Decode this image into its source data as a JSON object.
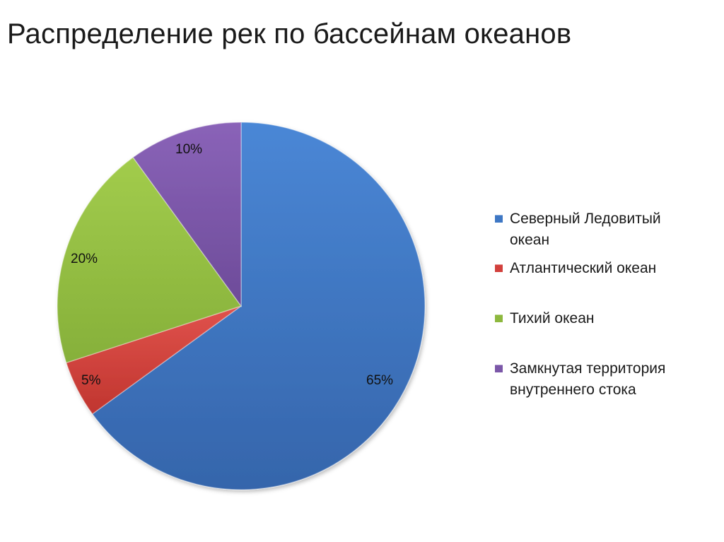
{
  "title": "Распределение рек по бассейнам океанов",
  "chart_data": {
    "type": "pie",
    "title": "Распределение рек по бассейнам океанов",
    "categories": [
      "Северный Ледовитый океан",
      "Атлантический океан",
      "Тихий океан",
      "Замкнутая территория внутреннего стока"
    ],
    "values": [
      65,
      5,
      20,
      10
    ],
    "labels": [
      "65%",
      "5%",
      "20%",
      "10%"
    ],
    "colors": [
      "#3e77c4",
      "#d2403c",
      "#8db83e",
      "#7b57a8"
    ],
    "legend_position": "right",
    "start_angle_deg": 0,
    "direction": "clockwise"
  },
  "legend": {
    "items": [
      {
        "label": "Северный Ледовитый океан",
        "color": "#3e77c4"
      },
      {
        "label": "Атлантический океан",
        "color": "#d2403c"
      },
      {
        "label": "Тихий океан",
        "color": "#8db83e"
      },
      {
        "label": "Замкнутая территория внутреннего стока",
        "color": "#7b57a8"
      }
    ]
  },
  "data_labels": [
    "65%",
    "5%",
    "20%",
    "10%"
  ]
}
